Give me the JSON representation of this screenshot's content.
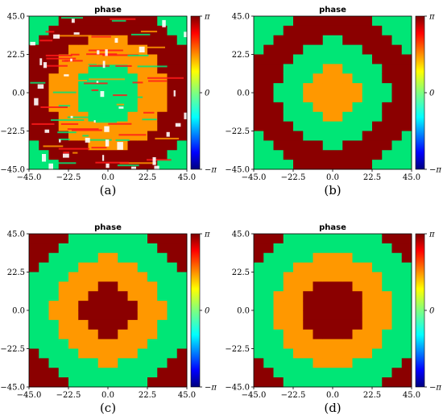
{
  "chart_data": [
    {
      "type": "heatmap",
      "panel": "a",
      "title": "phase",
      "caption": "(a)",
      "x_ticks": [
        "−45.0",
        "−22.5",
        "0.0",
        "22.5",
        "45.0"
      ],
      "y_ticks": [
        "45.0",
        "22.5",
        "0.0",
        "−22.5",
        "−45.0"
      ],
      "xlim": [
        -45.0,
        45.0
      ],
      "ylim": [
        -45.0,
        45.0
      ],
      "colorbar": {
        "ticks": [
          "π",
          "0",
          "−π"
        ],
        "range": [
          -3.1416,
          3.1416
        ],
        "colormap": "jet"
      },
      "grid": {
        "n": 16,
        "ring_levels": [
          0.05,
          1.6,
          3.1,
          0.05,
          1.6,
          3.1,
          0.05
        ],
        "ring_step": 3.0,
        "noisy": true
      }
    },
    {
      "type": "heatmap",
      "panel": "b",
      "title": "phase",
      "caption": "(b)",
      "x_ticks": [
        "−45.0",
        "−22.5",
        "0.0",
        "22.5",
        "45.0"
      ],
      "y_ticks": [
        "45.0",
        "22.5",
        "0.0",
        "−22.5",
        "−45.0"
      ],
      "xlim": [
        -45.0,
        45.0
      ],
      "ylim": [
        -45.0,
        45.0
      ],
      "colorbar": {
        "ticks": [
          "π",
          "0",
          "−π"
        ],
        "range": [
          -3.1416,
          3.1416
        ],
        "colormap": "jet"
      },
      "grid": {
        "n": 16,
        "ring_levels": [
          1.6,
          0.05,
          3.1,
          0.05,
          3.1,
          0.05
        ],
        "ring_step": 2.8,
        "noisy": false
      }
    },
    {
      "type": "heatmap",
      "panel": "c",
      "title": "phase",
      "caption": "(c)",
      "x_ticks": [
        "−45.0",
        "−22.5",
        "0.0",
        "22.5",
        "45.0"
      ],
      "y_ticks": [
        "45.0",
        "22.5",
        "0.0",
        "−22.5",
        "−45.0"
      ],
      "xlim": [
        -45.0,
        45.0
      ],
      "ylim": [
        -45.0,
        45.0
      ],
      "colorbar": {
        "ticks": [
          "π",
          "0",
          "−π"
        ],
        "range": [
          -3.1416,
          3.1416
        ],
        "colormap": "jet"
      },
      "grid": {
        "n": 16,
        "ring_levels": [
          3.1,
          1.6,
          0.05,
          3.1,
          0.05,
          3.1,
          1.6
        ],
        "ring_step": 2.8,
        "noisy": false
      }
    },
    {
      "type": "heatmap",
      "panel": "d",
      "title": "phase",
      "caption": "(d)",
      "x_ticks": [
        "−45.0",
        "−22.5",
        "0.0",
        "22.5",
        "45.0"
      ],
      "y_ticks": [
        "45.0",
        "22.5",
        "0.0",
        "−22.5",
        "−45.0"
      ],
      "xlim": [
        -45.0,
        45.0
      ],
      "ylim": [
        -45.0,
        45.0
      ],
      "colorbar": {
        "ticks": [
          "π",
          "0",
          "−π"
        ],
        "range": [
          -3.1416,
          3.1416
        ],
        "colormap": "jet"
      },
      "grid": {
        "n": 16,
        "ring_levels": [
          3.1,
          1.6,
          0.05,
          3.1,
          0.05,
          3.1
        ],
        "ring_step": 3.0,
        "noisy": false
      }
    }
  ],
  "colors": {
    "red": "#8B0000",
    "orange": "#FF9800",
    "green": "#00E676",
    "noise": "#FF1A1A"
  }
}
